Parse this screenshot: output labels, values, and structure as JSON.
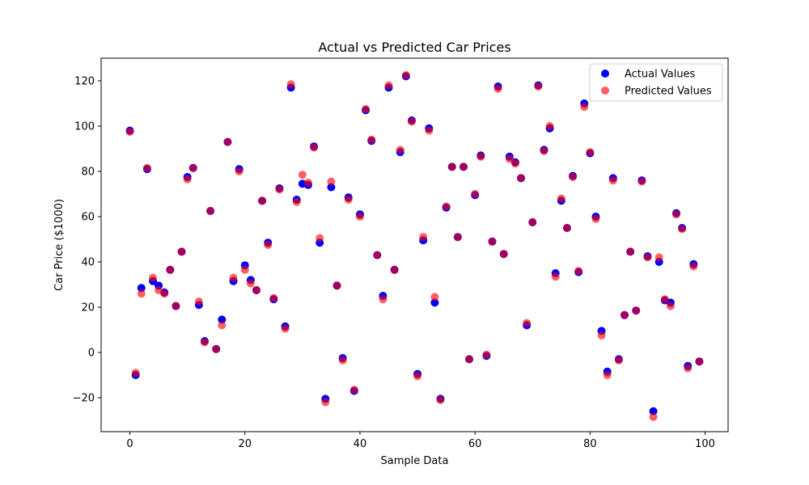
{
  "chart_data": {
    "type": "scatter",
    "title": "Actual vs Predicted Car Prices",
    "xlabel": "Sample Data",
    "ylabel": "Car Price ($1000)",
    "xlim": [
      -5,
      104
    ],
    "ylim": [
      -35,
      130
    ],
    "xticks": [
      0,
      20,
      40,
      60,
      80,
      100
    ],
    "yticks": [
      -20,
      0,
      20,
      40,
      60,
      80,
      100,
      120
    ],
    "legend_placement": "top-right",
    "grid": false,
    "series": [
      {
        "name": "Actual Values",
        "color": "#0000ff",
        "alpha": 1.0,
        "x": [
          0,
          1,
          2,
          3,
          4,
          5,
          6,
          7,
          8,
          9,
          10,
          11,
          12,
          13,
          14,
          15,
          16,
          17,
          18,
          19,
          20,
          21,
          22,
          23,
          24,
          25,
          26,
          27,
          28,
          29,
          30,
          31,
          32,
          33,
          34,
          35,
          36,
          37,
          38,
          39,
          40,
          41,
          42,
          43,
          44,
          45,
          46,
          47,
          48,
          49,
          50,
          51,
          52,
          53,
          54,
          55,
          56,
          57,
          58,
          59,
          60,
          61,
          62,
          63,
          64,
          65,
          66,
          67,
          68,
          69,
          70,
          71,
          72,
          73,
          74,
          75,
          76,
          77,
          78,
          79,
          80,
          81,
          82,
          83,
          84,
          85,
          86,
          87,
          88,
          89,
          90,
          91,
          92,
          93,
          94,
          95,
          96,
          97,
          98,
          99
        ],
        "y": [
          98,
          -10,
          28.5,
          81,
          31.5,
          29.5,
          26.5,
          36.5,
          20.5,
          44.5,
          77.5,
          81.5,
          21,
          5,
          62.5,
          1.5,
          14.5,
          93,
          31.5,
          81,
          38.5,
          32,
          27.5,
          67,
          48.5,
          23.5,
          72.5,
          11.5,
          117,
          67.5,
          74.5,
          74,
          91,
          48.5,
          -20.5,
          73,
          29.5,
          -2.5,
          68.5,
          -17,
          61,
          107,
          93.5,
          43,
          25,
          117,
          36.5,
          88.5,
          122,
          102.5,
          -9.5,
          49.5,
          99,
          22,
          -20.5,
          64,
          82,
          51,
          82,
          -3,
          69.5,
          87,
          -1.5,
          49,
          117.5,
          43.5,
          86.5,
          84,
          77,
          12,
          57.5,
          118,
          89.5,
          99,
          35,
          67,
          55,
          78,
          35.5,
          110,
          88,
          60,
          9.5,
          -8.5,
          77,
          -3,
          16.5,
          44.5,
          18.5,
          76,
          42.5,
          -26,
          40,
          23,
          22,
          61.5,
          55,
          -6,
          39,
          -4
        ]
      },
      {
        "name": "Predicted Values",
        "color": "#ff0000",
        "alpha": 0.62,
        "x": [
          0,
          1,
          2,
          3,
          4,
          5,
          6,
          7,
          8,
          9,
          10,
          11,
          12,
          13,
          14,
          15,
          16,
          17,
          18,
          19,
          20,
          21,
          22,
          23,
          24,
          25,
          26,
          27,
          28,
          29,
          30,
          31,
          32,
          33,
          34,
          35,
          36,
          37,
          38,
          39,
          40,
          41,
          42,
          43,
          44,
          45,
          46,
          47,
          48,
          49,
          50,
          51,
          52,
          53,
          54,
          55,
          56,
          57,
          58,
          59,
          60,
          61,
          62,
          63,
          64,
          65,
          66,
          67,
          68,
          69,
          70,
          71,
          72,
          73,
          74,
          75,
          76,
          77,
          78,
          79,
          80,
          81,
          82,
          83,
          84,
          85,
          86,
          87,
          88,
          89,
          90,
          91,
          92,
          93,
          94,
          95,
          96,
          97,
          98,
          99
        ],
        "y": [
          97.5,
          -9,
          26,
          81.5,
          33,
          27.5,
          26,
          36.5,
          20.5,
          44.5,
          76.5,
          81.5,
          22.5,
          4.5,
          62.5,
          1.5,
          12,
          93,
          33,
          80,
          36.5,
          30.5,
          27.5,
          67,
          47.5,
          24,
          72,
          10.5,
          118.5,
          66.5,
          78.5,
          75,
          90.5,
          50.5,
          -22,
          75.5,
          29.5,
          -3.5,
          67.5,
          -16.5,
          60,
          107.5,
          94,
          43,
          23.5,
          118,
          36.5,
          89.5,
          122.5,
          102,
          -10.5,
          51,
          98,
          24.5,
          -21,
          64.5,
          82,
          51,
          82,
          -3,
          70,
          86.5,
          -1,
          49,
          116.5,
          43.5,
          85.5,
          83.5,
          77,
          13,
          57.5,
          117.5,
          89,
          100,
          33.5,
          68,
          55,
          77.5,
          36,
          108.5,
          88.5,
          59,
          7.5,
          -10,
          76,
          -3.5,
          16.5,
          44.5,
          18.5,
          75.5,
          42,
          -28.5,
          42,
          23.5,
          20.5,
          61,
          54.5,
          -7,
          38,
          -4
        ]
      }
    ]
  }
}
